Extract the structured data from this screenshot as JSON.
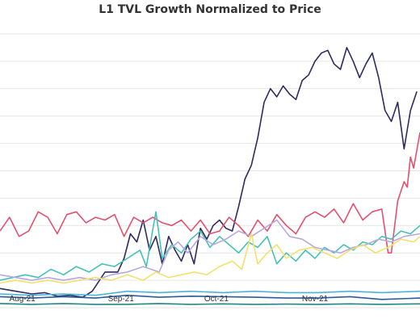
{
  "chart_data": {
    "type": "line",
    "title": "L1 TVL Growth Normalized to Price",
    "xlabel": "",
    "ylabel": "",
    "grid": true,
    "legend": "none",
    "x_range": [
      "2021-07-25",
      "2021-12-04"
    ],
    "y_range": [
      0,
      10.5
    ],
    "gridlines": [
      0,
      1,
      2,
      3,
      4,
      5,
      6,
      7,
      8,
      9,
      10
    ],
    "x_ticks": [
      {
        "date": "2021-08-01",
        "label": "Aug-21"
      },
      {
        "date": "2021-09-01",
        "label": "Sep-21"
      },
      {
        "date": "2021-10-01",
        "label": "Oct-21"
      },
      {
        "date": "2021-11-01",
        "label": "Nov-21"
      }
    ],
    "series": [
      {
        "color": "#2e2b5f",
        "points": [
          [
            "2021-07-25",
            0.7
          ],
          [
            "2021-07-30",
            0.6
          ],
          [
            "2021-08-04",
            0.5
          ],
          [
            "2021-08-08",
            0.55
          ],
          [
            "2021-08-12",
            0.42
          ],
          [
            "2021-08-16",
            0.45
          ],
          [
            "2021-08-20",
            0.38
          ],
          [
            "2021-08-23",
            0.6
          ],
          [
            "2021-08-27",
            1.3
          ],
          [
            "2021-08-31",
            1.3
          ],
          [
            "2021-09-02",
            1.8
          ],
          [
            "2021-09-04",
            2.7
          ],
          [
            "2021-09-06",
            2.4
          ],
          [
            "2021-09-08",
            3.2
          ],
          [
            "2021-09-10",
            2.1
          ],
          [
            "2021-09-12",
            2.6
          ],
          [
            "2021-09-14",
            1.6
          ],
          [
            "2021-09-16",
            2.6
          ],
          [
            "2021-09-18",
            2.1
          ],
          [
            "2021-09-20",
            1.7
          ],
          [
            "2021-09-22",
            2.3
          ],
          [
            "2021-09-24",
            1.6
          ],
          [
            "2021-09-26",
            2.9
          ],
          [
            "2021-09-28",
            2.5
          ],
          [
            "2021-09-30",
            3.0
          ],
          [
            "2021-10-02",
            3.2
          ],
          [
            "2021-10-04",
            2.9
          ],
          [
            "2021-10-06",
            2.8
          ],
          [
            "2021-10-08",
            3.7
          ],
          [
            "2021-10-10",
            4.7
          ],
          [
            "2021-10-12",
            5.2
          ],
          [
            "2021-10-14",
            6.2
          ],
          [
            "2021-10-16",
            7.5
          ],
          [
            "2021-10-18",
            8.0
          ],
          [
            "2021-10-20",
            7.7
          ],
          [
            "2021-10-22",
            8.1
          ],
          [
            "2021-10-24",
            7.8
          ],
          [
            "2021-10-26",
            7.6
          ],
          [
            "2021-10-28",
            8.3
          ],
          [
            "2021-10-30",
            8.5
          ],
          [
            "2021-11-01",
            9.0
          ],
          [
            "2021-11-03",
            9.3
          ],
          [
            "2021-11-05",
            9.4
          ],
          [
            "2021-11-07",
            8.9
          ],
          [
            "2021-11-09",
            8.7
          ],
          [
            "2021-11-11",
            9.5
          ],
          [
            "2021-11-13",
            9.0
          ],
          [
            "2021-11-15",
            8.4
          ],
          [
            "2021-11-17",
            8.9
          ],
          [
            "2021-11-19",
            9.3
          ],
          [
            "2021-11-21",
            8.4
          ],
          [
            "2021-11-23",
            7.2
          ],
          [
            "2021-11-25",
            6.8
          ],
          [
            "2021-11-27",
            7.5
          ],
          [
            "2021-11-29",
            5.8
          ],
          [
            "2021-12-01",
            7.2
          ],
          [
            "2021-12-03",
            7.9
          ]
        ]
      },
      {
        "color": "#e2516e",
        "points": [
          [
            "2021-07-25",
            2.8
          ],
          [
            "2021-07-28",
            3.3
          ],
          [
            "2021-07-31",
            2.6
          ],
          [
            "2021-08-03",
            2.8
          ],
          [
            "2021-08-06",
            3.5
          ],
          [
            "2021-08-09",
            3.3
          ],
          [
            "2021-08-12",
            2.7
          ],
          [
            "2021-08-15",
            3.4
          ],
          [
            "2021-08-18",
            3.5
          ],
          [
            "2021-08-21",
            3.1
          ],
          [
            "2021-08-24",
            3.3
          ],
          [
            "2021-08-27",
            3.2
          ],
          [
            "2021-08-30",
            3.4
          ],
          [
            "2021-09-02",
            2.6
          ],
          [
            "2021-09-05",
            3.3
          ],
          [
            "2021-09-08",
            3.1
          ],
          [
            "2021-09-11",
            3.3
          ],
          [
            "2021-09-14",
            3.1
          ],
          [
            "2021-09-17",
            3.0
          ],
          [
            "2021-09-20",
            3.2
          ],
          [
            "2021-09-23",
            2.8
          ],
          [
            "2021-09-26",
            3.2
          ],
          [
            "2021-09-29",
            2.7
          ],
          [
            "2021-10-02",
            2.8
          ],
          [
            "2021-10-05",
            3.3
          ],
          [
            "2021-10-08",
            3.0
          ],
          [
            "2021-10-11",
            2.6
          ],
          [
            "2021-10-14",
            3.2
          ],
          [
            "2021-10-17",
            2.8
          ],
          [
            "2021-10-20",
            3.4
          ],
          [
            "2021-10-23",
            3.0
          ],
          [
            "2021-10-26",
            2.7
          ],
          [
            "2021-10-29",
            3.3
          ],
          [
            "2021-11-01",
            3.5
          ],
          [
            "2021-11-04",
            3.3
          ],
          [
            "2021-11-07",
            3.6
          ],
          [
            "2021-11-10",
            3.1
          ],
          [
            "2021-11-13",
            3.8
          ],
          [
            "2021-11-16",
            3.2
          ],
          [
            "2021-11-19",
            3.5
          ],
          [
            "2021-11-22",
            3.6
          ],
          [
            "2021-11-24",
            2.0
          ],
          [
            "2021-11-25",
            2.0
          ],
          [
            "2021-11-27",
            3.9
          ],
          [
            "2021-11-29",
            4.6
          ],
          [
            "2021-11-30",
            4.4
          ],
          [
            "2021-12-01",
            5.5
          ],
          [
            "2021-12-02",
            5.1
          ],
          [
            "2021-12-04",
            6.4
          ]
        ]
      },
      {
        "color": "#45c1b8",
        "points": [
          [
            "2021-07-25",
            1.0
          ],
          [
            "2021-07-29",
            1.1
          ],
          [
            "2021-08-02",
            1.2
          ],
          [
            "2021-08-06",
            1.1
          ],
          [
            "2021-08-10",
            1.4
          ],
          [
            "2021-08-14",
            1.2
          ],
          [
            "2021-08-18",
            1.5
          ],
          [
            "2021-08-22",
            1.3
          ],
          [
            "2021-08-26",
            1.6
          ],
          [
            "2021-08-30",
            1.5
          ],
          [
            "2021-09-03",
            1.8
          ],
          [
            "2021-09-07",
            2.1
          ],
          [
            "2021-09-09",
            1.5
          ],
          [
            "2021-09-12",
            3.5
          ],
          [
            "2021-09-14",
            1.8
          ],
          [
            "2021-09-17",
            2.3
          ],
          [
            "2021-09-20",
            2.0
          ],
          [
            "2021-09-23",
            2.5
          ],
          [
            "2021-09-26",
            2.8
          ],
          [
            "2021-09-29",
            2.2
          ],
          [
            "2021-10-02",
            2.6
          ],
          [
            "2021-10-05",
            2.3
          ],
          [
            "2021-10-08",
            2.0
          ],
          [
            "2021-10-11",
            2.4
          ],
          [
            "2021-10-14",
            2.2
          ],
          [
            "2021-10-17",
            2.6
          ],
          [
            "2021-10-20",
            1.6
          ],
          [
            "2021-10-23",
            2.0
          ],
          [
            "2021-10-26",
            1.7
          ],
          [
            "2021-10-29",
            2.1
          ],
          [
            "2021-11-01",
            1.8
          ],
          [
            "2021-11-04",
            2.2
          ],
          [
            "2021-11-07",
            2.0
          ],
          [
            "2021-11-10",
            2.3
          ],
          [
            "2021-11-13",
            2.1
          ],
          [
            "2021-11-16",
            2.4
          ],
          [
            "2021-11-19",
            2.3
          ],
          [
            "2021-11-22",
            2.6
          ],
          [
            "2021-11-25",
            2.5
          ],
          [
            "2021-11-28",
            2.8
          ],
          [
            "2021-12-01",
            2.7
          ],
          [
            "2021-12-04",
            3.0
          ]
        ]
      },
      {
        "color": "#b8a9dd",
        "points": [
          [
            "2021-07-25",
            1.2
          ],
          [
            "2021-07-30",
            1.1
          ],
          [
            "2021-08-04",
            1.0
          ],
          [
            "2021-08-09",
            1.1
          ],
          [
            "2021-08-14",
            1.0
          ],
          [
            "2021-08-19",
            1.1
          ],
          [
            "2021-08-24",
            1.0
          ],
          [
            "2021-08-29",
            1.2
          ],
          [
            "2021-09-03",
            1.3
          ],
          [
            "2021-09-08",
            1.5
          ],
          [
            "2021-09-13",
            1.3
          ],
          [
            "2021-09-16",
            2.1
          ],
          [
            "2021-09-19",
            2.4
          ],
          [
            "2021-09-22",
            2.0
          ],
          [
            "2021-09-26",
            2.6
          ],
          [
            "2021-09-30",
            2.3
          ],
          [
            "2021-10-04",
            2.5
          ],
          [
            "2021-10-08",
            2.8
          ],
          [
            "2021-10-12",
            2.6
          ],
          [
            "2021-10-16",
            2.9
          ],
          [
            "2021-10-20",
            3.2
          ],
          [
            "2021-10-24",
            2.6
          ],
          [
            "2021-10-28",
            2.5
          ],
          [
            "2021-11-01",
            2.2
          ],
          [
            "2021-11-05",
            2.1
          ],
          [
            "2021-11-09",
            2.0
          ],
          [
            "2021-11-13",
            2.2
          ],
          [
            "2021-11-17",
            2.3
          ],
          [
            "2021-11-21",
            2.5
          ],
          [
            "2021-11-25",
            2.4
          ],
          [
            "2021-11-29",
            2.6
          ],
          [
            "2021-12-04",
            2.7
          ]
        ]
      },
      {
        "color": "#f2e26b",
        "points": [
          [
            "2021-07-25",
            0.9
          ],
          [
            "2021-07-30",
            1.0
          ],
          [
            "2021-08-04",
            0.9
          ],
          [
            "2021-08-09",
            1.0
          ],
          [
            "2021-08-14",
            0.9
          ],
          [
            "2021-08-19",
            1.0
          ],
          [
            "2021-08-24",
            1.1
          ],
          [
            "2021-08-29",
            1.0
          ],
          [
            "2021-09-03",
            1.2
          ],
          [
            "2021-09-08",
            1.0
          ],
          [
            "2021-09-12",
            1.3
          ],
          [
            "2021-09-16",
            1.1
          ],
          [
            "2021-09-20",
            1.2
          ],
          [
            "2021-09-24",
            1.3
          ],
          [
            "2021-09-28",
            1.2
          ],
          [
            "2021-10-02",
            1.5
          ],
          [
            "2021-10-06",
            1.7
          ],
          [
            "2021-10-09",
            1.4
          ],
          [
            "2021-10-12",
            2.7
          ],
          [
            "2021-10-14",
            1.6
          ],
          [
            "2021-10-17",
            2.0
          ],
          [
            "2021-10-20",
            2.3
          ],
          [
            "2021-10-23",
            1.8
          ],
          [
            "2021-10-27",
            2.1
          ],
          [
            "2021-10-31",
            2.2
          ],
          [
            "2021-11-04",
            2.0
          ],
          [
            "2021-11-08",
            1.8
          ],
          [
            "2021-11-12",
            2.1
          ],
          [
            "2021-11-16",
            2.3
          ],
          [
            "2021-11-20",
            2.0
          ],
          [
            "2021-11-24",
            2.2
          ],
          [
            "2021-11-28",
            2.5
          ],
          [
            "2021-12-02",
            2.4
          ],
          [
            "2021-12-04",
            2.6
          ]
        ]
      },
      {
        "color": "#4ab3d9",
        "points": [
          [
            "2021-07-25",
            0.5
          ],
          [
            "2021-08-04",
            0.45
          ],
          [
            "2021-08-14",
            0.5
          ],
          [
            "2021-08-24",
            0.45
          ],
          [
            "2021-09-03",
            0.6
          ],
          [
            "2021-09-13",
            0.55
          ],
          [
            "2021-09-23",
            0.6
          ],
          [
            "2021-10-03",
            0.55
          ],
          [
            "2021-10-13",
            0.6
          ],
          [
            "2021-10-23",
            0.55
          ],
          [
            "2021-11-02",
            0.55
          ],
          [
            "2021-11-12",
            0.6
          ],
          [
            "2021-11-22",
            0.55
          ],
          [
            "2021-12-04",
            0.6
          ]
        ]
      },
      {
        "color": "#2a5c9a",
        "points": [
          [
            "2021-07-25",
            0.4
          ],
          [
            "2021-08-04",
            0.35
          ],
          [
            "2021-08-14",
            0.4
          ],
          [
            "2021-08-24",
            0.35
          ],
          [
            "2021-09-03",
            0.45
          ],
          [
            "2021-09-13",
            0.38
          ],
          [
            "2021-09-23",
            0.42
          ],
          [
            "2021-10-03",
            0.4
          ],
          [
            "2021-10-13",
            0.38
          ],
          [
            "2021-10-23",
            0.35
          ],
          [
            "2021-11-02",
            0.35
          ],
          [
            "2021-11-12",
            0.4
          ],
          [
            "2021-11-22",
            0.3
          ],
          [
            "2021-12-04",
            0.35
          ]
        ]
      },
      {
        "color": "#1f8a80",
        "points": [
          [
            "2021-07-25",
            0.15
          ],
          [
            "2021-08-04",
            0.12
          ],
          [
            "2021-08-14",
            0.15
          ],
          [
            "2021-08-24",
            0.12
          ],
          [
            "2021-09-03",
            0.12
          ],
          [
            "2021-09-13",
            0.15
          ],
          [
            "2021-09-23",
            0.12
          ],
          [
            "2021-10-03",
            0.14
          ],
          [
            "2021-10-13",
            0.12
          ],
          [
            "2021-10-23",
            0.13
          ],
          [
            "2021-11-02",
            0.12
          ],
          [
            "2021-11-12",
            0.14
          ],
          [
            "2021-11-22",
            0.12
          ],
          [
            "2021-12-04",
            0.14
          ]
        ]
      }
    ]
  }
}
